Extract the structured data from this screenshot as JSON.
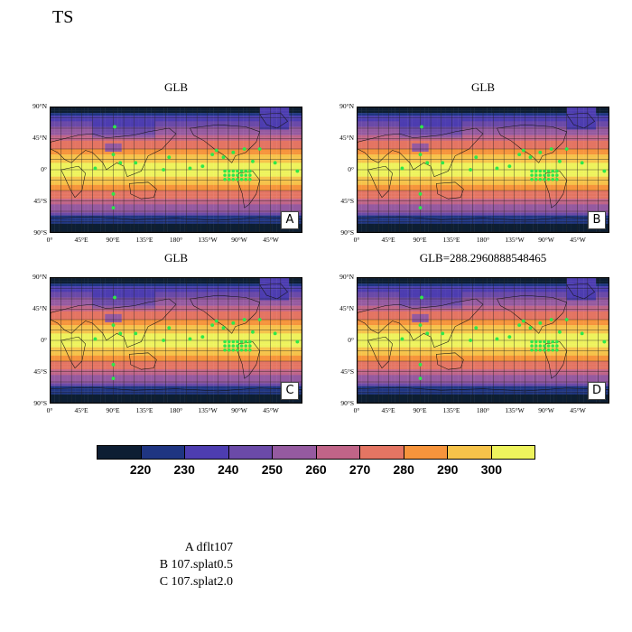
{
  "title": "TS",
  "panels": [
    {
      "title": "GLB",
      "label": "A"
    },
    {
      "title": "GLB",
      "label": "B"
    },
    {
      "title": "GLB",
      "label": "C"
    },
    {
      "title": "GLB=288.2960888548465",
      "label": "D"
    }
  ],
  "lat_ticks": [
    "90°N",
    "45°N",
    "0°",
    "45°S",
    "90°S"
  ],
  "lon_ticks": [
    "0°",
    "45°E",
    "90°E",
    "135°E",
    "180°",
    "135°W",
    "90°W",
    "45°W"
  ],
  "colorbar": {
    "colors": [
      "#0d1e33",
      "#1f3582",
      "#4d3db0",
      "#6b4aa8",
      "#955aa0",
      "#c06488",
      "#e47563",
      "#f6943c",
      "#f6c34a",
      "#eef35d"
    ],
    "labels": [
      "220",
      "230",
      "240",
      "250",
      "260",
      "270",
      "280",
      "290",
      "300"
    ]
  },
  "legend": [
    "A  dflt107",
    "B  107.splat0.5",
    "C  107.splat2.0"
  ]
}
